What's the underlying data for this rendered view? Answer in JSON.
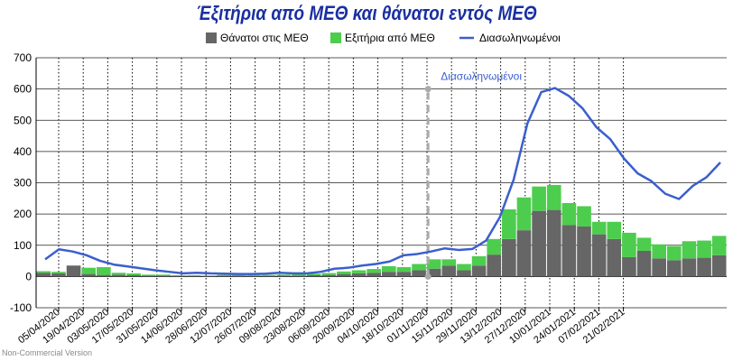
{
  "chart_data": {
    "type": "bar",
    "title": "Έξιτήρια από ΜΕΘ και θάνατοι εντός ΜΕΘ",
    "ylim": [
      -100,
      700
    ],
    "yticks": [
      -100,
      0,
      100,
      200,
      300,
      400,
      500,
      600,
      700
    ],
    "grid": true,
    "legend_position": "top",
    "x_tick_labels": [
      "05/04/2020",
      "19/04/2020",
      "03/05/2020",
      "17/05/2020",
      "31/05/2020",
      "14/06/2020",
      "28/06/2020",
      "12/07/2020",
      "26/07/2020",
      "09/08/2020",
      "23/08/2020",
      "06/09/2020",
      "20/09/2020",
      "04/10/2020",
      "18/10/2020",
      "01/11/2020",
      "15/11/2020",
      "29/11/2020",
      "13/12/2020",
      "27/12/2020",
      "10/01/2021",
      "24/01/2021",
      "07/02/2021",
      "21/02/2021"
    ],
    "bar_series": [
      {
        "name": "Θάνατοι στις ΜΕΘ",
        "color": "#666666",
        "values": [
          12,
          10,
          35,
          8,
          5,
          6,
          4,
          3,
          3,
          2,
          2,
          2,
          3,
          3,
          2,
          2,
          3,
          3,
          4,
          5,
          8,
          10,
          12,
          15,
          15,
          20,
          25,
          35,
          20,
          35,
          70,
          120,
          148,
          210,
          213,
          165,
          160,
          135,
          120,
          62,
          82,
          58,
          52,
          58,
          60,
          68
        ]
      },
      {
        "name": "Εξιτήρια από ΜΕΘ",
        "color": "#4dcd4d",
        "values": [
          5,
          5,
          0,
          20,
          25,
          6,
          6,
          3,
          3,
          2,
          2,
          1,
          2,
          2,
          3,
          3,
          3,
          4,
          5,
          6,
          8,
          10,
          12,
          18,
          15,
          20,
          30,
          20,
          20,
          30,
          50,
          95,
          105,
          78,
          80,
          70,
          65,
          40,
          55,
          78,
          42,
          45,
          45,
          55,
          55,
          62
        ]
      }
    ],
    "line_series": {
      "name": "Διασωληνωμένοι",
      "color": "#3a5fcd",
      "values": [
        55,
        87,
        80,
        68,
        50,
        38,
        32,
        26,
        20,
        15,
        10,
        12,
        10,
        9,
        8,
        8,
        9,
        12,
        10,
        10,
        15,
        25,
        28,
        35,
        40,
        48,
        68,
        72,
        80,
        90,
        85,
        88,
        115,
        190,
        310,
        490,
        590,
        603,
        578,
        538,
        478,
        440,
        378,
        330,
        305,
        265,
        248,
        290,
        318,
        365
      ]
    },
    "annotation": {
      "label": "Διασωληνωμένοι",
      "x_index": 16,
      "y": 600
    },
    "watermark": "Non-Commercial Version"
  }
}
